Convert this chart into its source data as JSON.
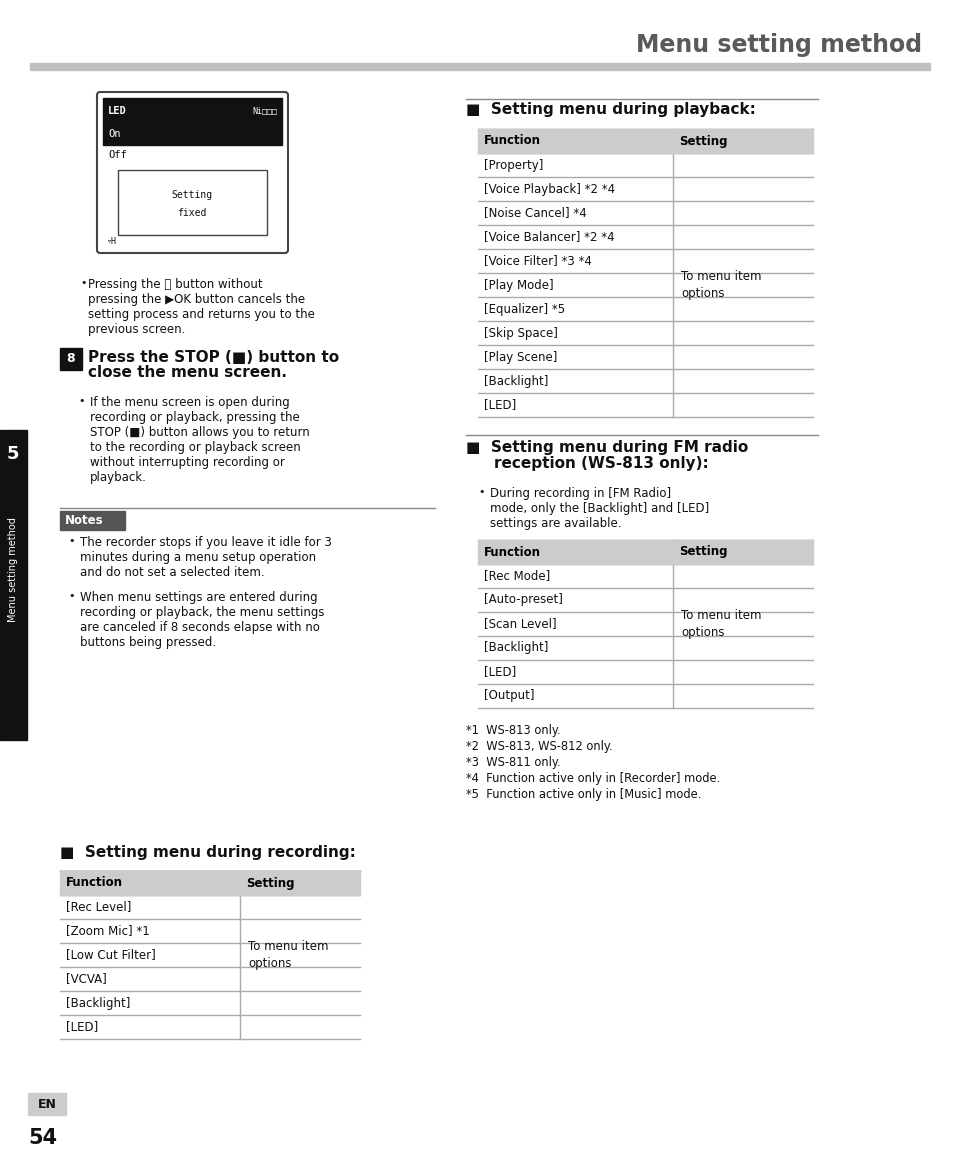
{
  "page_title": "Menu setting method",
  "page_number": "54",
  "chapter_label": "5",
  "chapter_title": "Menu setting method",
  "bg_color": "#ffffff",
  "title_color": "#5a5a5a",
  "header_bar_color": "#c0c0c0",
  "table_header_bg": "#cccccc",
  "notes_header_bg": "#555555",
  "sidebar_bg": "#111111",
  "table_header_label_func": "Function",
  "table_header_label_set": "Setting",
  "lcd_title": "LED",
  "lcd_battery": "Ni□□□",
  "lcd_selected": "On",
  "lcd_unselected": "Off",
  "lcd_popup_line1": "Setting",
  "lcd_popup_line2": "fixed",
  "lcd_bottom": "▿H",
  "bullet1_lines": [
    "Pressing the ⏮ button without",
    "pressing the ▶OK button cancels the",
    "setting process and returns you to the",
    "previous screen."
  ],
  "step8_number": "8",
  "step8_line1": "Press the STOP (■) button to",
  "step8_line2": "close the menu screen.",
  "step8_sub_lines": [
    "If the menu screen is open during",
    "recording or playback, pressing the",
    "STOP (■) button allows you to return",
    "to the recording or playback screen",
    "without interrupting recording or",
    "playback."
  ],
  "notes_title": "Notes",
  "note1_lines": [
    "The recorder stops if you leave it idle for 3",
    "minutes during a menu setup operation",
    "and do not set a selected item."
  ],
  "note2_lines": [
    "When menu settings are entered during",
    "recording or playback, the menu settings",
    "are canceled if 8 seconds elapse with no",
    "buttons being pressed."
  ],
  "rec_section_title": "Setting menu during recording:",
  "rec_table_rows": [
    "[Rec Level]",
    "[Zoom Mic] *1",
    "[Low Cut Filter]",
    "[VCVA]",
    "[Backlight]",
    "[LED]"
  ],
  "rec_arrow_text": "To menu item\noptions",
  "rec_arrow_rows": [
    2,
    3
  ],
  "pb_section_title": "Setting menu during playback:",
  "pb_table_rows": [
    "[Property]",
    "[Voice Playback] *2 *4",
    "[Noise Cancel] *4",
    "[Voice Balancer] *2 *4",
    "[Voice Filter] *3 *4",
    "[Play Mode]",
    "[Equalizer] *5",
    "[Skip Space]",
    "[Play Scene]",
    "[Backlight]",
    "[LED]"
  ],
  "pb_arrow_text": "To menu item\noptions",
  "pb_arrow_rows": [
    5,
    6
  ],
  "fm_section_title_line1": "Setting menu during FM radio",
  "fm_section_title_line2": "reception (WS-813 only):",
  "fm_bullet_lines": [
    "During recording in [FM Radio]",
    "mode, only the [Backlight] and [LED]",
    "settings are available."
  ],
  "fm_table_rows": [
    "[Rec Mode]",
    "[Auto-preset]",
    "[Scan Level]",
    "[Backlight]",
    "[LED]",
    "[Output]"
  ],
  "fm_arrow_text": "To menu item\noptions",
  "fm_arrow_rows": [
    2,
    3
  ],
  "footnotes": [
    "*1  WS-813 only.",
    "*2  WS-813, WS-812 only.",
    "*3  WS-811 only.",
    "*4  Function active only in [Recorder] mode.",
    "*5  Function active only in [Music] mode."
  ]
}
